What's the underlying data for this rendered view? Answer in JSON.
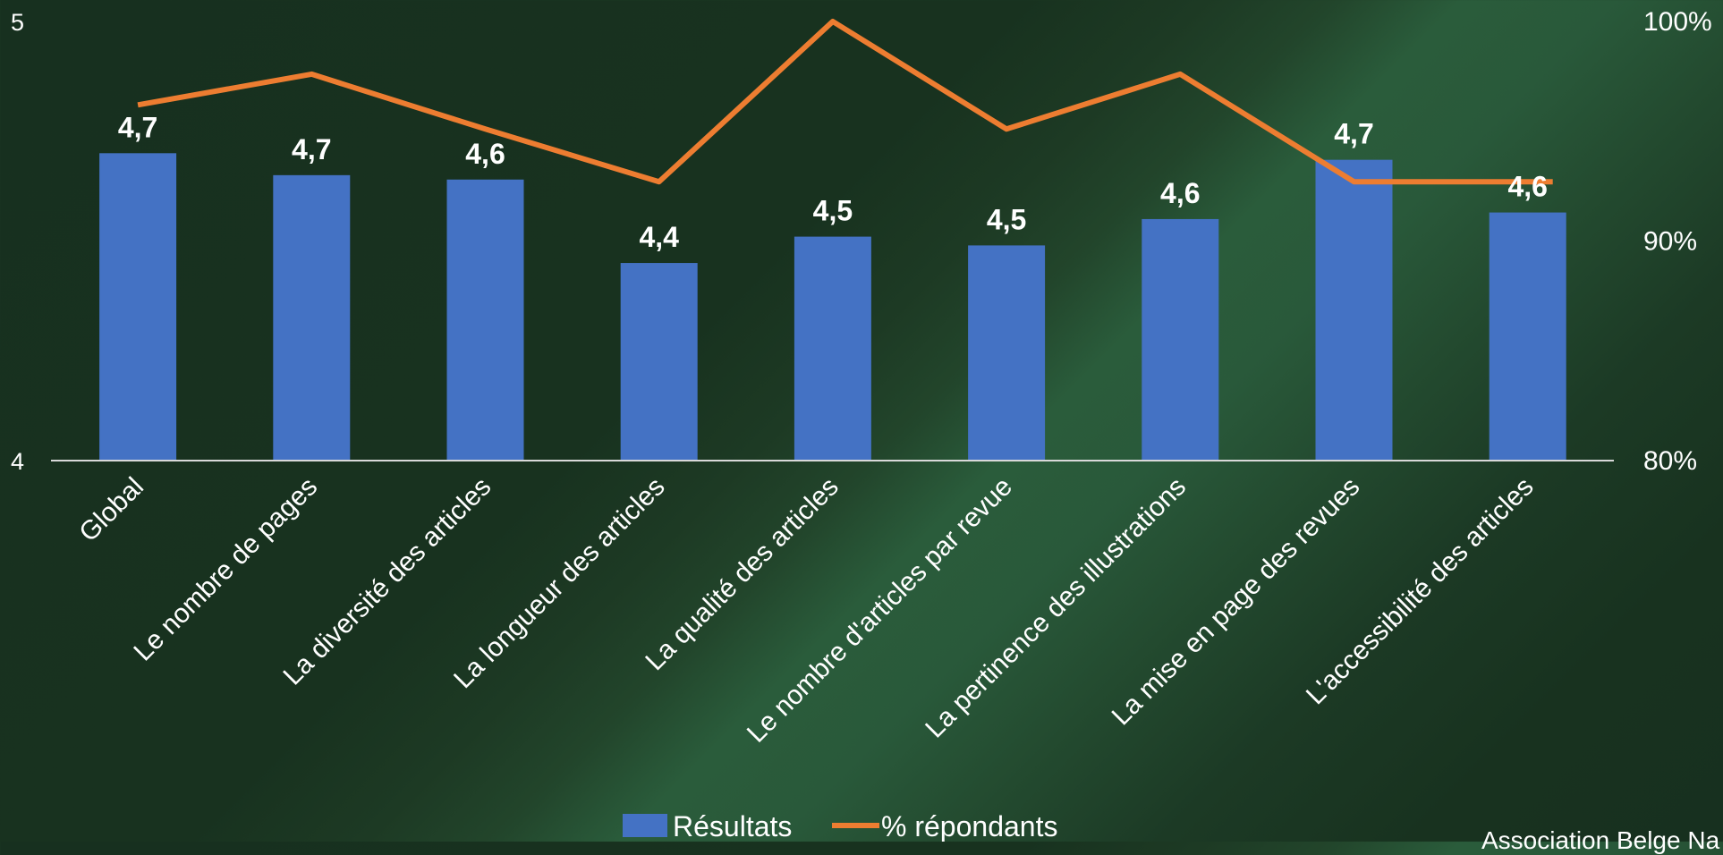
{
  "chart_data": {
    "type": "bar",
    "categories": [
      "Global",
      "Le nombre de pages",
      "La diversité des articles",
      "La longueur des articles",
      "La qualité des articles",
      "Le nombre d'articles par revue",
      "La pertinence des illustrations",
      "La mise en page des revues",
      "L'accessibilité des articles"
    ],
    "series": [
      {
        "name": "Résultats",
        "type": "bar",
        "axis": "left",
        "color": "#4472C4",
        "values": [
          4.7,
          4.65,
          4.64,
          4.45,
          4.51,
          4.49,
          4.55,
          4.685,
          4.565
        ],
        "labels": [
          "4,7",
          "4,7",
          "4,6",
          "4,4",
          "4,5",
          "4,5",
          "4,6",
          "4,7",
          "4,6"
        ]
      },
      {
        "name": "% répondants",
        "type": "line",
        "axis": "right",
        "color": "#ED7D31",
        "values": [
          96.2,
          97.6,
          95.1,
          92.7,
          100,
          95.1,
          97.6,
          92.7,
          92.7
        ]
      }
    ],
    "y_left": {
      "min": 4,
      "max": 5,
      "ticks": [
        "4",
        "5"
      ]
    },
    "y_right": {
      "min": 80,
      "max": 100,
      "ticks": [
        "80%",
        "90%",
        "100%"
      ]
    },
    "legend_position": "bottom",
    "grid": false
  },
  "footer_text": "Association Belge Na"
}
